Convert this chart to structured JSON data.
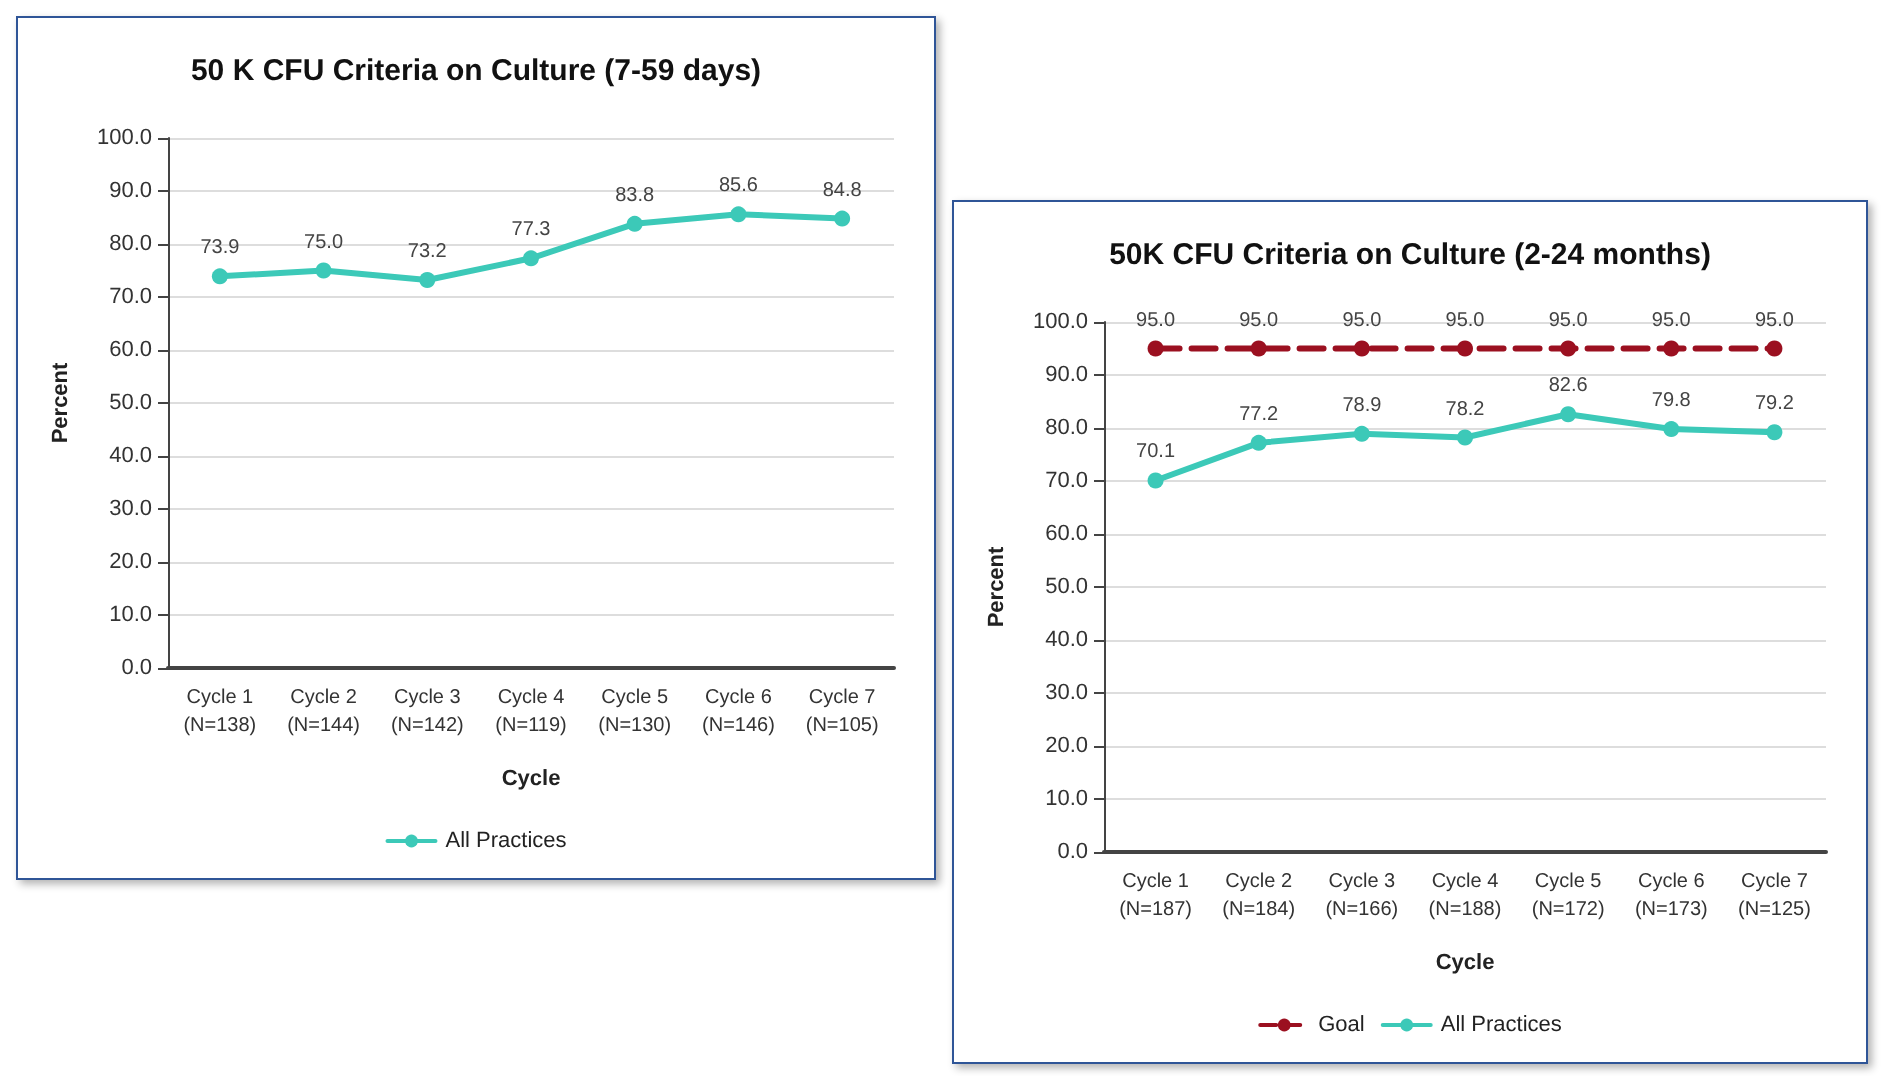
{
  "chart_data": [
    {
      "type": "line",
      "title": "50 K CFU Criteria on Culture (7-59 days)",
      "xlabel": "Cycle",
      "ylabel": "Percent",
      "categories": [
        "Cycle 1\n(N=138)",
        "Cycle 2\n(N=144)",
        "Cycle 3\n(N=142)",
        "Cycle 4\n(N=119)",
        "Cycle 5\n(N=130)",
        "Cycle 6\n(N=146)",
        "Cycle 7\n(N=105)"
      ],
      "series": [
        {
          "name": "All Practices",
          "color": "#3cc9b8",
          "values": [
            73.9,
            75.0,
            73.2,
            77.3,
            83.8,
            85.6,
            84.8
          ],
          "value_labels": [
            "73.9",
            "75.0",
            "73.2",
            "77.3",
            "83.8",
            "85.6",
            "84.8"
          ]
        }
      ],
      "ylim": [
        0,
        100
      ],
      "yticks": [
        {
          "value": 0,
          "label": "0.0"
        },
        {
          "value": 10,
          "label": "10.0"
        },
        {
          "value": 20,
          "label": "20.0"
        },
        {
          "value": 30,
          "label": "30.0"
        },
        {
          "value": 40,
          "label": "40.0"
        },
        {
          "value": 50,
          "label": "50.0"
        },
        {
          "value": 60,
          "label": "60.0"
        },
        {
          "value": 70,
          "label": "70.0"
        },
        {
          "value": 80,
          "label": "80.0"
        },
        {
          "value": 90,
          "label": "90.0"
        },
        {
          "value": 100,
          "label": "100.0"
        }
      ],
      "grid": "y",
      "legend": "bottom",
      "marker": "circle"
    },
    {
      "type": "line",
      "title": "50K CFU Criteria on Culture (2-24 months)",
      "xlabel": "Cycle",
      "ylabel": "Percent",
      "categories": [
        "Cycle 1\n(N=187)",
        "Cycle 2\n(N=184)",
        "Cycle 3\n(N=166)",
        "Cycle 4\n(N=188)",
        "Cycle 5\n(N=172)",
        "Cycle 6\n(N=173)",
        "Cycle 7\n(N=125)"
      ],
      "series": [
        {
          "name": "Goal",
          "color": "#9b1020",
          "line_style": "dashed",
          "values": [
            95.0,
            95.0,
            95.0,
            95.0,
            95.0,
            95.0,
            95.0
          ],
          "value_labels": [
            "95.0",
            "95.0",
            "95.0",
            "95.0",
            "95.0",
            "95.0",
            "95.0"
          ]
        },
        {
          "name": "All Practices",
          "color": "#3cc9b8",
          "values": [
            70.1,
            77.2,
            78.9,
            78.2,
            82.6,
            79.8,
            79.2
          ],
          "value_labels": [
            "70.1",
            "77.2",
            "78.9",
            "78.2",
            "82.6",
            "79.8",
            "79.2"
          ]
        }
      ],
      "ylim": [
        0,
        100
      ],
      "yticks": [
        {
          "value": 0,
          "label": "0.0"
        },
        {
          "value": 10,
          "label": "10.0"
        },
        {
          "value": 20,
          "label": "20.0"
        },
        {
          "value": 30,
          "label": "30.0"
        },
        {
          "value": 40,
          "label": "40.0"
        },
        {
          "value": 50,
          "label": "50.0"
        },
        {
          "value": 60,
          "label": "60.0"
        },
        {
          "value": 70,
          "label": "70.0"
        },
        {
          "value": 80,
          "label": "80.0"
        },
        {
          "value": 90,
          "label": "90.0"
        },
        {
          "value": 100,
          "label": "100.0"
        }
      ],
      "grid": "y",
      "legend": "bottom",
      "marker": "circle"
    }
  ]
}
